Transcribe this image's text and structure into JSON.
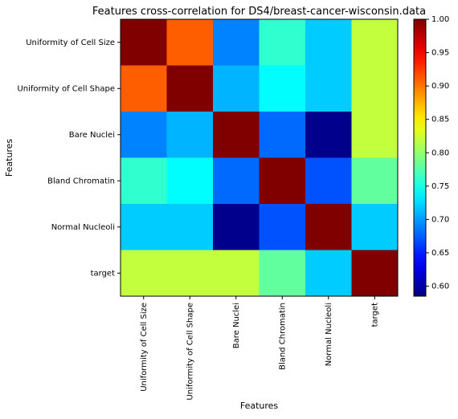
{
  "chart_data": {
    "type": "heatmap",
    "title": "Features cross-correlation for DS4/breast-cancer-wisconsin.data",
    "xlabel": "Features",
    "ylabel": "Features",
    "x_categories": [
      "Uniformity of Cell Size",
      "Uniformity of Cell Shape",
      "Bare Nuclei",
      "Bland Chromatin",
      "Normal Nucleoli",
      "target"
    ],
    "y_categories": [
      "Uniformity of Cell Size",
      "Uniformity of Cell Shape",
      "Bare Nuclei",
      "Bland Chromatin",
      "Normal Nucleoli",
      "target"
    ],
    "matrix": [
      [
        1.0,
        0.91,
        0.69,
        0.76,
        0.72,
        0.82
      ],
      [
        0.91,
        1.0,
        0.71,
        0.74,
        0.72,
        0.82
      ],
      [
        0.69,
        0.71,
        1.0,
        0.68,
        0.59,
        0.82
      ],
      [
        0.76,
        0.74,
        0.68,
        1.0,
        0.67,
        0.78
      ],
      [
        0.72,
        0.72,
        0.59,
        0.67,
        1.0,
        0.72
      ],
      [
        0.82,
        0.82,
        0.82,
        0.78,
        0.72,
        1.0
      ]
    ],
    "colormap": "jet",
    "vmin": 0.585,
    "vmax": 1.0,
    "colorbar_ticks": [
      "0.60",
      "0.65",
      "0.70",
      "0.75",
      "0.80",
      "0.85",
      "0.90",
      "0.95",
      "1.00"
    ],
    "grid": false
  }
}
